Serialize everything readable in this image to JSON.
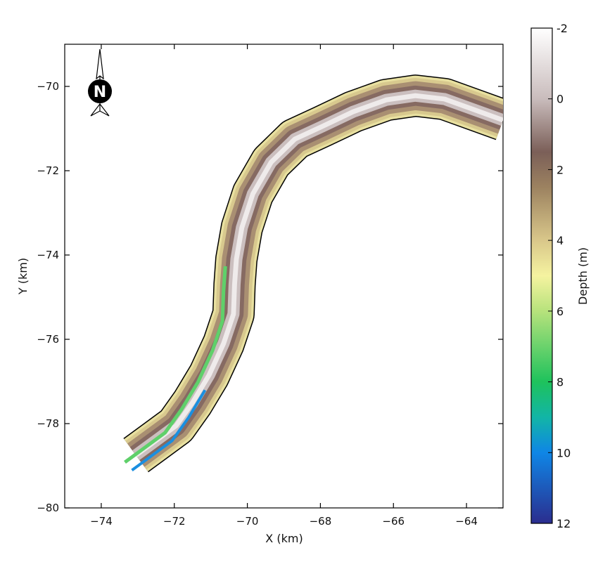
{
  "map": {
    "x_axis": {
      "label": "X (km)",
      "range": [
        -75,
        -63
      ],
      "ticks": [
        -74,
        -72,
        -70,
        -68,
        -66,
        -64
      ]
    },
    "y_axis": {
      "label": "Y (km)",
      "range": [
        -80,
        -69
      ],
      "ticks": [
        -70,
        -72,
        -74,
        -76,
        -78,
        -80
      ]
    },
    "north_arrow": {
      "label": "N"
    },
    "colorbar": {
      "label": "Depth (m)",
      "range": [
        -2,
        12
      ],
      "ticks": [
        -2,
        0,
        2,
        4,
        6,
        8,
        10,
        12
      ],
      "stops": [
        {
          "value": -2,
          "color": "#ffffff"
        },
        {
          "value": 0,
          "color": "#c9bcbc"
        },
        {
          "value": 1.5,
          "color": "#7b5f58"
        },
        {
          "value": 2.5,
          "color": "#9c8260"
        },
        {
          "value": 4,
          "color": "#d9c78a"
        },
        {
          "value": 5,
          "color": "#f5f3a0"
        },
        {
          "value": 6,
          "color": "#b7e27c"
        },
        {
          "value": 8,
          "color": "#1ec25c"
        },
        {
          "value": 9,
          "color": "#12b5a6"
        },
        {
          "value": 10,
          "color": "#0f86e6"
        },
        {
          "value": 12,
          "color": "#2b2d8e"
        }
      ]
    },
    "channel": {
      "centerline": [
        [
          -73.05,
          -78.75
        ],
        [
          -72.5,
          -78.4
        ],
        [
          -71.95,
          -78.05
        ],
        [
          -71.5,
          -77.5
        ],
        [
          -71.05,
          -76.85
        ],
        [
          -70.65,
          -76.1
        ],
        [
          -70.38,
          -75.4
        ],
        [
          -70.35,
          -74.7
        ],
        [
          -70.3,
          -74.1
        ],
        [
          -70.15,
          -73.35
        ],
        [
          -69.85,
          -72.55
        ],
        [
          -69.35,
          -71.8
        ],
        [
          -68.7,
          -71.25
        ],
        [
          -67.95,
          -70.95
        ],
        [
          -67.1,
          -70.6
        ],
        [
          -66.2,
          -70.32
        ],
        [
          -65.4,
          -70.22
        ],
        [
          -64.6,
          -70.3
        ],
        [
          -63.8,
          -70.55
        ],
        [
          -63.0,
          -70.8
        ]
      ],
      "halfwidth_km": 0.55
    }
  }
}
